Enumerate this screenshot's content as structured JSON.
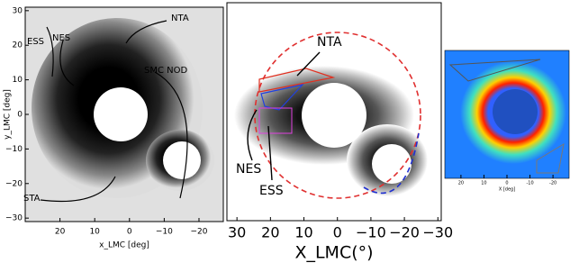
{
  "chart_data": [
    {
      "type": "image",
      "xlabel": "x_LMC [deg]",
      "ylabel": "y_LMC [deg]",
      "xlim": [
        30,
        -27
      ],
      "xticks": [
        20,
        10,
        0,
        {
          "value": -10,
          "label": "−10"
        },
        {
          "value": -20,
          "label": "−20"
        }
      ],
      "ylim": [
        -31,
        31
      ],
      "yticks": [
        {
          "value": -30,
          "label": "−30"
        },
        {
          "value": -20,
          "label": "−20"
        },
        {
          "value": -10,
          "label": "−10"
        },
        0,
        10,
        20,
        30
      ],
      "annotations": [
        "NTA",
        "ESS",
        "NES",
        "SMC NOD",
        "STA"
      ]
    },
    {
      "type": "image",
      "xlabel": "X_LMC(°)",
      "xlim": [
        33,
        -31
      ],
      "xticks": [
        30,
        20,
        10,
        0,
        {
          "value": -10,
          "label": "−10"
        },
        {
          "value": -20,
          "label": "−20"
        },
        {
          "value": -30,
          "label": "−30"
        }
      ],
      "annotations": [
        "NTA",
        "NES",
        "ESS"
      ]
    },
    {
      "type": "image",
      "xlabel": "X [deg]",
      "xlim": [
        27,
        -27
      ],
      "xticks": [
        20,
        10,
        0,
        {
          "value": -10,
          "label": "-10"
        },
        {
          "value": -20,
          "label": "-20"
        }
      ]
    }
  ]
}
